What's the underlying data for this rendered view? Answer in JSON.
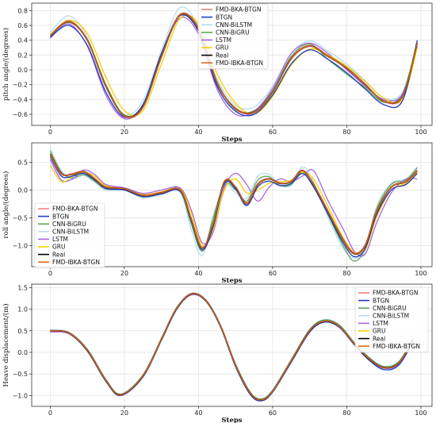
{
  "chart_data": [
    {
      "type": "line",
      "ylabel": "pitch angle/(degrees)",
      "xlabel": "Steps",
      "xlim": [
        -5,
        103
      ],
      "ylim": [
        -0.75,
        0.9
      ],
      "xticks": [
        0,
        20,
        40,
        60,
        80,
        100
      ],
      "yticks": [
        -0.6,
        -0.4,
        -0.2,
        0.0,
        0.2,
        0.4,
        0.6,
        0.8
      ],
      "ytick_labels": [
        "−0.6",
        "−0.4",
        "−0.2",
        "0.0",
        "0.2",
        "0.4",
        "0.6",
        "0.8"
      ],
      "grid": true,
      "legend_position": "top-center",
      "legend": [
        "FMD-BKA-BTGN",
        "BTGN",
        "CNN-BiLSTM",
        "CNN-BiGRU",
        "LSTM",
        "GRU",
        "Real",
        "FMD-IBKA-BTGN"
      ],
      "x": [
        0,
        5,
        10,
        15,
        20,
        25,
        30,
        35,
        40,
        45,
        50,
        55,
        60,
        65,
        70,
        75,
        80,
        85,
        90,
        95,
        99
      ],
      "series": [
        {
          "name": "Real",
          "color": "#000000",
          "values": [
            0.46,
            0.65,
            0.4,
            -0.22,
            -0.62,
            -0.5,
            0.18,
            0.74,
            0.55,
            -0.18,
            -0.52,
            -0.57,
            -0.3,
            0.15,
            0.32,
            0.18,
            0.02,
            -0.2,
            -0.42,
            -0.36,
            0.36
          ]
        },
        {
          "name": "FMD-BKA-BTGN",
          "color": "#f08080",
          "values": [
            0.45,
            0.66,
            0.41,
            -0.21,
            -0.63,
            -0.51,
            0.17,
            0.75,
            0.56,
            -0.17,
            -0.53,
            -0.58,
            -0.31,
            0.16,
            0.33,
            0.19,
            0.03,
            -0.19,
            -0.43,
            -0.37,
            0.37
          ]
        },
        {
          "name": "BTGN",
          "color": "#1f3cc4",
          "values": [
            0.44,
            0.6,
            0.33,
            -0.3,
            -0.64,
            -0.47,
            0.22,
            0.73,
            0.52,
            -0.22,
            -0.56,
            -0.6,
            -0.34,
            0.08,
            0.27,
            0.14,
            -0.04,
            -0.26,
            -0.47,
            -0.42,
            0.4
          ]
        },
        {
          "name": "CNN-BiLSTM",
          "color": "#b8dcf0",
          "values": [
            0.5,
            0.73,
            0.44,
            -0.24,
            -0.6,
            -0.42,
            0.26,
            0.84,
            0.58,
            -0.12,
            -0.48,
            -0.5,
            -0.22,
            0.22,
            0.39,
            0.25,
            0.08,
            -0.15,
            -0.38,
            -0.3,
            0.38
          ]
        },
        {
          "name": "CNN-BiGRU",
          "color": "#5fa85a",
          "values": [
            0.47,
            0.64,
            0.41,
            -0.2,
            -0.61,
            -0.48,
            0.18,
            0.74,
            0.57,
            -0.16,
            -0.54,
            -0.55,
            -0.28,
            0.18,
            0.35,
            0.14,
            -0.06,
            -0.24,
            -0.44,
            -0.33,
            0.38
          ]
        },
        {
          "name": "LSTM",
          "color": "#a964e6",
          "values": [
            0.43,
            0.62,
            0.32,
            -0.34,
            -0.66,
            -0.48,
            0.2,
            0.7,
            0.48,
            -0.26,
            -0.6,
            -0.56,
            -0.25,
            0.22,
            0.36,
            0.22,
            0.0,
            -0.22,
            -0.4,
            -0.33,
            0.32
          ]
        },
        {
          "name": "GRU",
          "color": "#f5d000",
          "values": [
            0.47,
            0.67,
            0.49,
            -0.1,
            -0.55,
            -0.55,
            0.08,
            0.69,
            0.62,
            -0.05,
            -0.45,
            -0.6,
            -0.36,
            0.06,
            0.28,
            0.2,
            0.05,
            -0.16,
            -0.38,
            -0.4,
            0.3
          ]
        },
        {
          "name": "FMD-IBKA-BTGN",
          "color": "#d96a1e",
          "values": [
            0.46,
            0.65,
            0.4,
            -0.22,
            -0.62,
            -0.5,
            0.18,
            0.74,
            0.55,
            -0.18,
            -0.52,
            -0.57,
            -0.3,
            0.15,
            0.32,
            0.18,
            0.02,
            -0.2,
            -0.42,
            -0.36,
            0.36
          ]
        }
      ]
    },
    {
      "type": "line",
      "ylabel": "roll angle/(degrees)",
      "xlabel": "Steps",
      "xlim": [
        -5,
        103
      ],
      "ylim": [
        -1.38,
        0.85
      ],
      "xticks": [
        0,
        20,
        40,
        60,
        80,
        100
      ],
      "yticks": [
        -1.0,
        -0.5,
        0.0,
        0.5
      ],
      "ytick_labels": [
        "−1.0",
        "−0.5",
        "0.0",
        "0.5"
      ],
      "grid": true,
      "legend_position": "lower-left",
      "legend": [
        "FMD-BKA-BTGN",
        "BTGN",
        "CNN-BiGRU",
        "CNN-BiLSTM",
        "LSTM",
        "GRU",
        "Real",
        "FMD-IBKA-BTGN"
      ],
      "x": [
        0,
        3,
        6,
        9,
        12,
        15,
        20,
        25,
        30,
        35,
        38,
        41,
        44,
        47,
        50,
        53,
        56,
        59,
        62,
        65,
        68,
        71,
        75,
        79,
        82,
        85,
        88,
        92,
        96,
        99
      ],
      "series": [
        {
          "name": "Real",
          "color": "#000000",
          "values": [
            0.65,
            0.3,
            0.28,
            0.33,
            0.2,
            0.05,
            0.02,
            -0.1,
            -0.05,
            0.0,
            -0.52,
            -1.05,
            -0.6,
            0.15,
            0.05,
            -0.25,
            0.1,
            0.2,
            0.12,
            0.15,
            0.35,
            0.1,
            -0.4,
            -0.9,
            -1.15,
            -1.0,
            -0.4,
            0.05,
            0.15,
            0.35
          ]
        },
        {
          "name": "FMD-BKA-BTGN",
          "color": "#f08080",
          "values": [
            0.62,
            0.28,
            0.3,
            0.34,
            0.21,
            0.06,
            0.03,
            -0.09,
            -0.04,
            0.01,
            -0.5,
            -1.03,
            -0.58,
            0.16,
            0.06,
            -0.23,
            0.12,
            0.21,
            0.13,
            0.16,
            0.36,
            0.11,
            -0.38,
            -0.88,
            -1.13,
            -0.98,
            -0.38,
            0.06,
            0.16,
            0.36
          ]
        },
        {
          "name": "BTGN",
          "color": "#1f3cc4",
          "values": [
            0.6,
            0.25,
            0.25,
            0.3,
            0.18,
            0.03,
            0.0,
            -0.12,
            -0.07,
            -0.02,
            -0.55,
            -1.08,
            -0.65,
            0.12,
            0.02,
            -0.28,
            0.06,
            0.16,
            0.08,
            0.12,
            0.3,
            0.06,
            -0.44,
            -0.95,
            -1.2,
            -1.05,
            -0.45,
            0.0,
            0.1,
            0.3
          ]
        },
        {
          "name": "CNN-BiGRU",
          "color": "#5fa85a",
          "values": [
            0.7,
            0.32,
            0.22,
            0.28,
            0.16,
            0.02,
            0.0,
            -0.12,
            -0.06,
            -0.02,
            -0.6,
            -1.1,
            -0.5,
            0.1,
            0.0,
            -0.2,
            0.18,
            0.24,
            0.08,
            0.1,
            0.3,
            0.12,
            -0.45,
            -1.0,
            -1.28,
            -1.05,
            -0.35,
            0.1,
            0.18,
            0.4
          ]
        },
        {
          "name": "CNN-BiLSTM",
          "color": "#b8dcf0",
          "values": [
            0.75,
            0.35,
            0.2,
            0.26,
            0.14,
            0.0,
            0.0,
            -0.14,
            -0.08,
            -0.04,
            -0.7,
            -1.18,
            -0.45,
            0.08,
            -0.05,
            -0.15,
            0.25,
            0.28,
            0.1,
            0.08,
            0.42,
            0.15,
            -0.5,
            -1.05,
            -1.22,
            -1.1,
            -0.3,
            0.12,
            0.2,
            0.42
          ]
        },
        {
          "name": "LSTM",
          "color": "#a964e6",
          "values": [
            0.55,
            0.18,
            0.2,
            0.36,
            0.28,
            0.1,
            0.04,
            -0.06,
            0.0,
            0.04,
            -0.35,
            -0.95,
            -0.75,
            0.05,
            0.3,
            0.1,
            -0.2,
            0.05,
            0.2,
            0.15,
            0.25,
            0.35,
            -0.2,
            -0.7,
            -1.1,
            -1.15,
            -0.6,
            -0.05,
            0.2,
            0.2
          ]
        },
        {
          "name": "GRU",
          "color": "#f5d000",
          "values": [
            0.45,
            0.15,
            0.25,
            0.32,
            0.25,
            0.08,
            0.02,
            -0.08,
            -0.03,
            0.02,
            -0.4,
            -1.0,
            -0.7,
            0.0,
            0.2,
            -0.05,
            0.0,
            0.12,
            0.15,
            0.18,
            0.32,
            0.2,
            -0.3,
            -0.85,
            -1.12,
            -1.08,
            -0.5,
            0.0,
            0.12,
            0.32
          ]
        },
        {
          "name": "FMD-IBKA-BTGN",
          "color": "#d96a1e",
          "values": [
            0.65,
            0.3,
            0.28,
            0.33,
            0.2,
            0.05,
            0.02,
            -0.1,
            -0.05,
            0.0,
            -0.52,
            -1.05,
            -0.6,
            0.15,
            0.05,
            -0.25,
            0.1,
            0.2,
            0.12,
            0.15,
            0.35,
            0.1,
            -0.4,
            -0.9,
            -1.15,
            -1.0,
            -0.4,
            0.05,
            0.15,
            0.35
          ]
        }
      ]
    },
    {
      "type": "line",
      "ylabel": "Heave displacement/(m)",
      "xlabel": "Steps",
      "xlim": [
        -5,
        103
      ],
      "ylim": [
        -1.25,
        1.58
      ],
      "xticks": [
        0,
        20,
        40,
        60,
        80,
        100
      ],
      "yticks": [
        -1.0,
        -0.5,
        0.0,
        0.5,
        1.0,
        1.5
      ],
      "ytick_labels": [
        "−1.0",
        "−0.5",
        "0.0",
        "0.5",
        "1.0",
        "1.5"
      ],
      "grid": true,
      "legend_position": "top-right",
      "legend": [
        "FMD-BKA-BTGN",
        "BTGN",
        "CNN-BiGRU",
        "CNN-BiLSTM",
        "LSTM",
        "GRU",
        "Real",
        "FMD-IBKA-BTGN"
      ],
      "x": [
        0,
        5,
        10,
        15,
        19,
        25,
        30,
        34,
        38,
        42,
        46,
        50,
        54,
        57,
        60,
        65,
        70,
        74,
        78,
        82,
        86,
        90,
        94,
        98
      ],
      "series": [
        {
          "name": "Real",
          "color": "#000000",
          "values": [
            0.5,
            0.45,
            0.05,
            -0.65,
            -0.98,
            -0.55,
            0.3,
            1.0,
            1.35,
            1.2,
            0.6,
            -0.3,
            -0.95,
            -1.1,
            -0.9,
            -0.2,
            0.5,
            0.72,
            0.6,
            0.2,
            -0.15,
            -0.35,
            -0.25,
            0.3
          ]
        },
        {
          "name": "FMD-BKA-BTGN",
          "color": "#f08080",
          "values": [
            0.48,
            0.46,
            0.06,
            -0.64,
            -0.99,
            -0.54,
            0.31,
            1.01,
            1.36,
            1.21,
            0.61,
            -0.29,
            -0.94,
            -1.09,
            -0.89,
            -0.19,
            0.51,
            0.73,
            0.61,
            0.21,
            -0.14,
            -0.36,
            -0.26,
            0.28
          ]
        },
        {
          "name": "BTGN",
          "color": "#1f3cc4",
          "values": [
            0.51,
            0.44,
            0.03,
            -0.67,
            -1.0,
            -0.57,
            0.28,
            0.98,
            1.34,
            1.19,
            0.58,
            -0.33,
            -0.98,
            -1.12,
            -0.92,
            -0.23,
            0.47,
            0.7,
            0.58,
            0.18,
            -0.18,
            -0.4,
            -0.3,
            0.26
          ]
        },
        {
          "name": "CNN-BiGRU",
          "color": "#5fa85a",
          "values": [
            0.49,
            0.46,
            0.07,
            -0.63,
            -0.97,
            -0.53,
            0.32,
            1.02,
            1.34,
            1.18,
            0.59,
            -0.28,
            -0.93,
            -1.08,
            -0.88,
            -0.18,
            0.53,
            0.75,
            0.63,
            0.22,
            -0.12,
            -0.33,
            -0.22,
            0.32
          ]
        },
        {
          "name": "CNN-BiLSTM",
          "color": "#b8dcf0",
          "values": [
            0.52,
            0.47,
            0.08,
            -0.62,
            -0.96,
            -0.52,
            0.33,
            1.03,
            1.37,
            1.22,
            0.62,
            -0.27,
            -0.92,
            -1.07,
            -0.87,
            -0.17,
            0.54,
            0.76,
            0.64,
            0.24,
            -0.11,
            -0.32,
            -0.21,
            0.34
          ]
        },
        {
          "name": "LSTM",
          "color": "#a964e6",
          "values": [
            0.47,
            0.43,
            0.04,
            -0.66,
            -0.99,
            -0.56,
            0.29,
            0.99,
            1.33,
            1.19,
            0.6,
            -0.31,
            -0.96,
            -1.11,
            -0.91,
            -0.21,
            0.49,
            0.71,
            0.59,
            0.19,
            -0.16,
            -0.37,
            -0.27,
            0.29
          ]
        },
        {
          "name": "GRU",
          "color": "#f5d000",
          "values": [
            0.5,
            0.45,
            0.05,
            -0.65,
            -0.98,
            -0.55,
            0.3,
            1.0,
            1.35,
            1.2,
            0.6,
            -0.3,
            -0.95,
            -1.1,
            -0.9,
            -0.2,
            0.5,
            0.72,
            0.6,
            0.2,
            -0.15,
            -0.35,
            -0.25,
            0.3
          ]
        },
        {
          "name": "FMD-IBKA-BTGN",
          "color": "#d96a1e",
          "values": [
            0.5,
            0.45,
            0.05,
            -0.65,
            -0.98,
            -0.55,
            0.3,
            1.0,
            1.35,
            1.2,
            0.6,
            -0.3,
            -0.95,
            -1.1,
            -0.9,
            -0.2,
            0.5,
            0.72,
            0.6,
            0.2,
            -0.15,
            -0.35,
            -0.25,
            0.3
          ]
        }
      ]
    }
  ]
}
